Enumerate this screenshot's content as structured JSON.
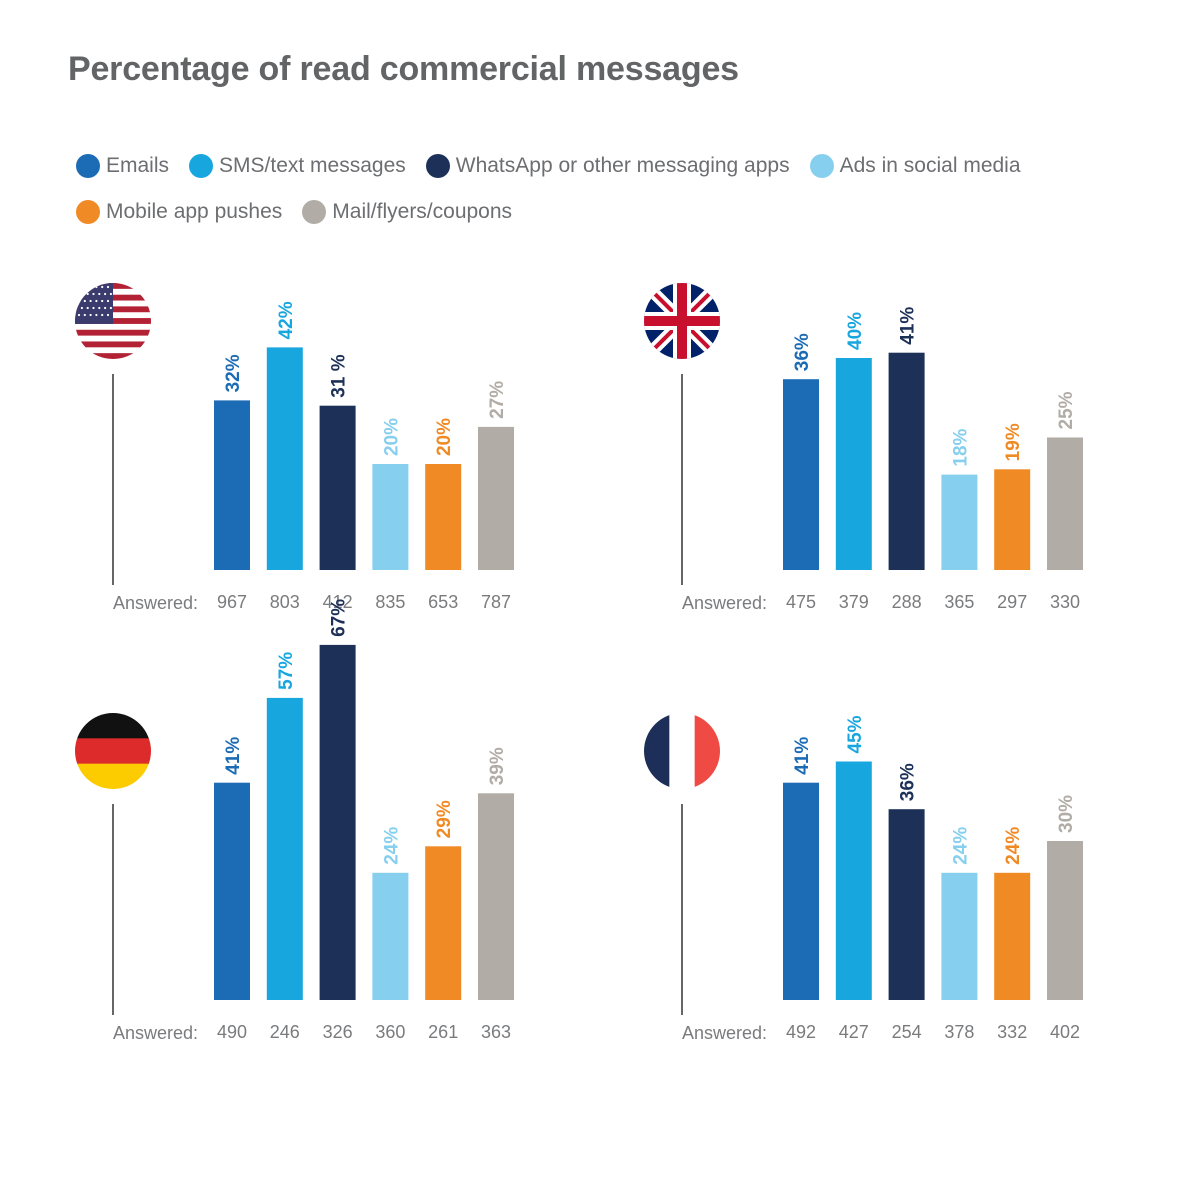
{
  "title": "Percentage of read commercial messages",
  "colors": {
    "emails": "#1c6cb5",
    "sms": "#18a6df",
    "whatsapp": "#1d3158",
    "social": "#86cfee",
    "pushes": "#f08a24",
    "mail": "#b2aca6"
  },
  "legend": [
    {
      "label": "Emails",
      "color_key": "emails"
    },
    {
      "label": "SMS/text messages",
      "color_key": "sms"
    },
    {
      "label": "WhatsApp or other messaging apps",
      "color_key": "whatsapp"
    },
    {
      "label": "Ads in social media",
      "color_key": "social"
    },
    {
      "label": "Mobile app pushes",
      "color_key": "pushes"
    },
    {
      "label": "Mail/flyers/coupons",
      "color_key": "mail"
    }
  ],
  "answered_label": "Answered:",
  "chart_data": [
    {
      "type": "bar",
      "flag_icon": "usa-flag-icon",
      "categories": [
        "Emails",
        "SMS/text messages",
        "WhatsApp or other messaging apps",
        "Ads in social media",
        "Mobile app pushes",
        "Mail/flyers/coupons"
      ],
      "values": [
        32,
        42,
        31,
        20,
        20,
        27
      ],
      "value_labels": [
        "32%",
        "42%",
        "31 %",
        "20%",
        "20%",
        "27%"
      ],
      "answered": [
        "967",
        "803",
        "412",
        "835",
        "653",
        "787"
      ]
    },
    {
      "type": "bar",
      "flag_icon": "uk-flag-icon",
      "categories": [
        "Emails",
        "SMS/text messages",
        "WhatsApp or other messaging apps",
        "Ads in social media",
        "Mobile app pushes",
        "Mail/flyers/coupons"
      ],
      "values": [
        36,
        40,
        41,
        18,
        19,
        25
      ],
      "value_labels": [
        "36%",
        "40%",
        "41%",
        "18%",
        "19%",
        "25%"
      ],
      "answered": [
        "475",
        "379",
        "288",
        "365",
        "297",
        "330"
      ]
    },
    {
      "type": "bar",
      "flag_icon": "germany-flag-icon",
      "categories": [
        "Emails",
        "SMS/text messages",
        "WhatsApp or other messaging apps",
        "Ads in social media",
        "Mobile app pushes",
        "Mail/flyers/coupons"
      ],
      "values": [
        41,
        57,
        67,
        24,
        29,
        39
      ],
      "value_labels": [
        "41%",
        "57%",
        "67%",
        "24%",
        "29%",
        "39%"
      ],
      "answered": [
        "490",
        "246",
        "326",
        "360",
        "261",
        "363"
      ]
    },
    {
      "type": "bar",
      "flag_icon": "france-flag-icon",
      "categories": [
        "Emails",
        "SMS/text messages",
        "WhatsApp or other messaging apps",
        "Ads in social media",
        "Mobile app pushes",
        "Mail/flyers/coupons"
      ],
      "values": [
        41,
        45,
        36,
        24,
        24,
        30
      ],
      "value_labels": [
        "41%",
        "45%",
        "36%",
        "24%",
        "24%",
        "30%"
      ],
      "answered": [
        "492",
        "427",
        "254",
        "378",
        "332",
        "402"
      ]
    }
  ]
}
